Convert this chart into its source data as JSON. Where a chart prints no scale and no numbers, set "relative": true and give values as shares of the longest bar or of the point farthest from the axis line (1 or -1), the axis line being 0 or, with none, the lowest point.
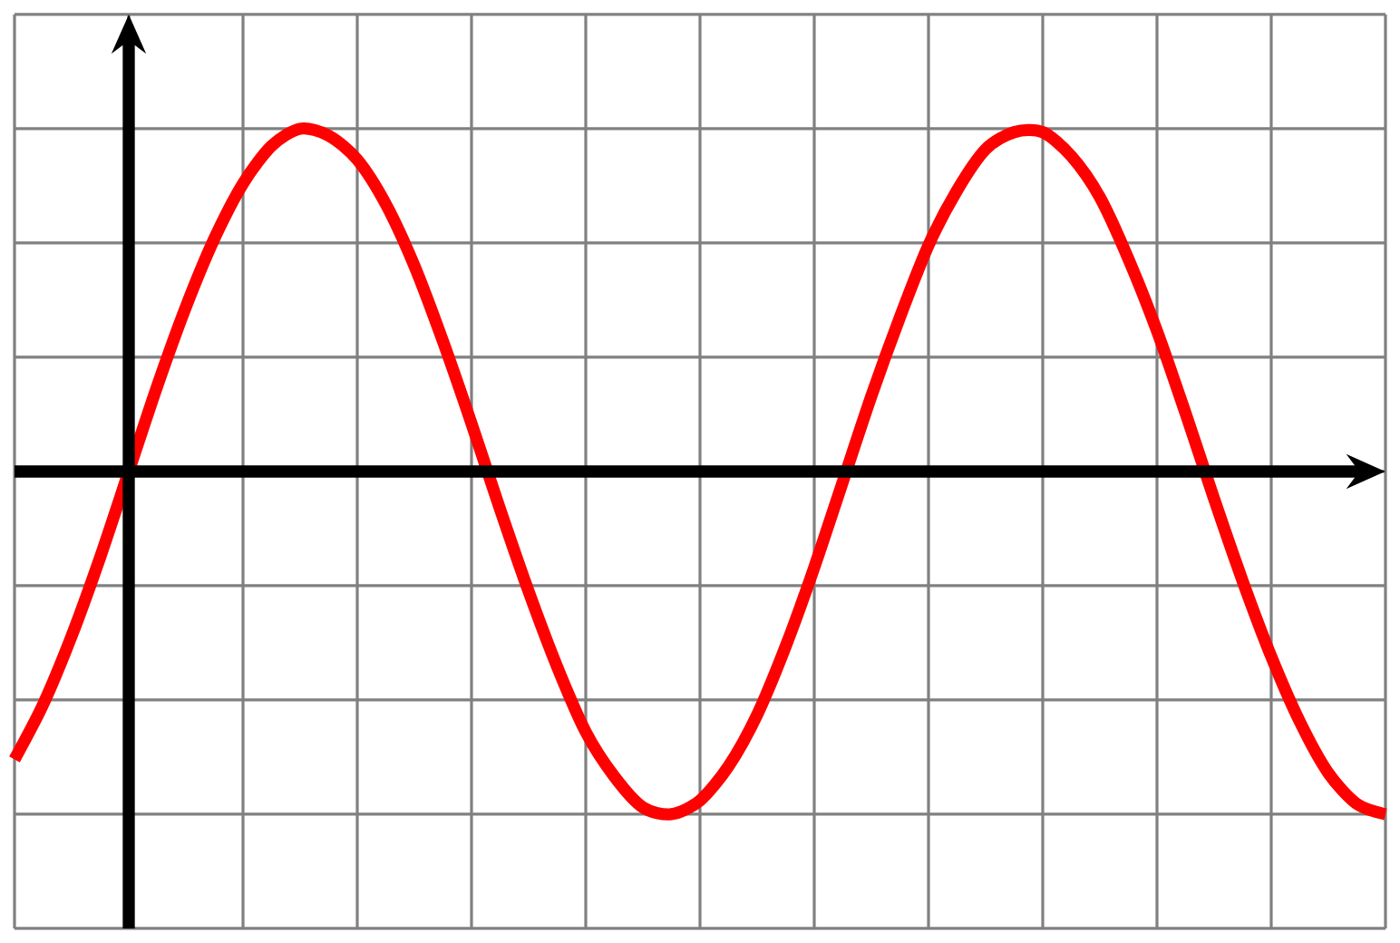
{
  "chart_data": {
    "type": "line",
    "relative": true,
    "grid": true,
    "categories": [
      null,
      null,
      null,
      null,
      null,
      null,
      null,
      null,
      null,
      null,
      null,
      null,
      null,
      null,
      null,
      null,
      null,
      null,
      null,
      null,
      null,
      null,
      null,
      null,
      null,
      null,
      null,
      null,
      null,
      null,
      null,
      null,
      null,
      null,
      null,
      null,
      null,
      null,
      null,
      null,
      null,
      null,
      null,
      null,
      null,
      null,
      null,
      null,
      null
    ],
    "series": [
      {
        "color": "#ff0000",
        "values": [
          -0.84,
          -0.68,
          -0.48,
          -0.25,
          0,
          0.25,
          0.48,
          0.68,
          0.84,
          0.95,
          1.0,
          0.98,
          0.91,
          0.78,
          0.6,
          0.38,
          0.14,
          -0.11,
          -0.35,
          -0.57,
          -0.76,
          -0.89,
          -0.98,
          -1.0,
          -0.96,
          -0.86,
          -0.71,
          -0.51,
          -0.28,
          -0.03,
          0.22,
          0.45,
          0.66,
          0.82,
          0.94,
          0.99,
          0.99,
          0.92,
          0.8,
          0.62,
          0.41,
          0.17,
          -0.08,
          -0.32,
          -0.54,
          -0.73,
          -0.88,
          -0.97,
          -1.0
        ]
      }
    ]
  }
}
